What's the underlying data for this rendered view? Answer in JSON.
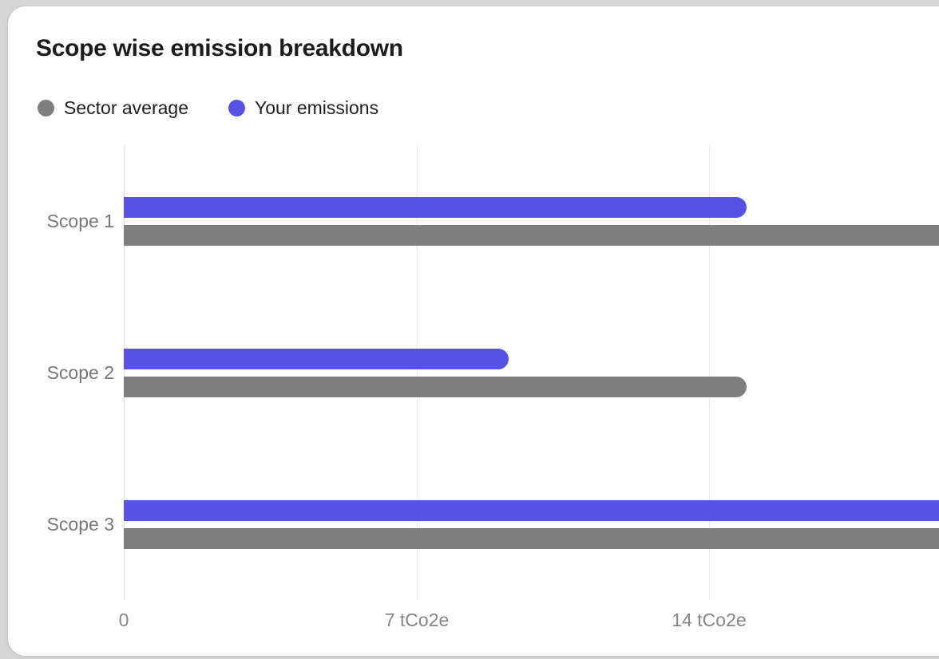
{
  "page": {
    "background_color": "#d6d6d6",
    "card_background_color": "#ffffff"
  },
  "card": {
    "title": "Scope wise emission breakdown",
    "legend": [
      {
        "label": "Sector average",
        "color": "#7f7f7f"
      },
      {
        "label": "Your emissions",
        "color": "#5552e4"
      }
    ]
  },
  "chart_data": {
    "type": "bar",
    "orientation": "horizontal",
    "title": "Scope wise emission breakdown",
    "categories": [
      "Scope 1",
      "Scope 2",
      "Scope 3"
    ],
    "series": [
      {
        "name": "Your emissions",
        "color": "#5552e4",
        "values": [
          14.9,
          9.2,
          20
        ],
        "clipped_at_right_edge": [
          false,
          false,
          true
        ]
      },
      {
        "name": "Sector average",
        "color": "#7f7f7f",
        "values": [
          20,
          14.9,
          20
        ],
        "clipped_at_right_edge": [
          true,
          false,
          true
        ]
      }
    ],
    "bar_row_order_top_to_bottom": [
      "Your emissions",
      "Sector average"
    ],
    "x_ticks": [
      {
        "value": 0,
        "label": "0"
      },
      {
        "value": 7,
        "label": "7 tCo2e"
      },
      {
        "value": 14,
        "label": "14 tCo2e"
      }
    ],
    "unit": "tCo2e",
    "x_axis_visible_max": 19.5,
    "grid": "vertical-lines-only",
    "legend_position": "top-left",
    "colors": {
      "title_text": "#1c1c1e",
      "legend_text": "#1f1f23",
      "category_label_text": "#77777b",
      "tick_label_text": "#85858a",
      "gridline": "#e9e9ee",
      "zero_line": "#dddde2"
    }
  }
}
